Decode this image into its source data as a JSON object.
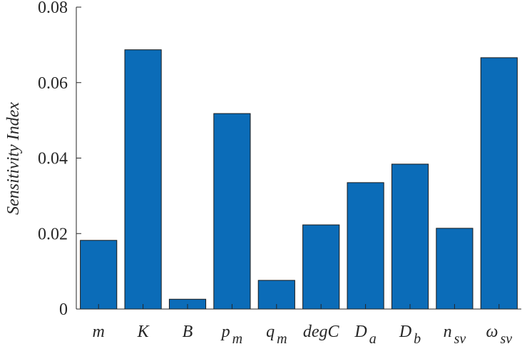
{
  "chart_data": {
    "type": "bar",
    "ylabel": "Sensitivity Index",
    "categories": [
      "m",
      "K",
      "B",
      "p_m",
      "q_m",
      "degC",
      "D_a",
      "D_b",
      "n_sv",
      "ω_sv"
    ],
    "values": [
      0.0182,
      0.0687,
      0.0026,
      0.0518,
      0.0076,
      0.0223,
      0.0335,
      0.0384,
      0.0214,
      0.0666
    ],
    "color": "#0b6cb8",
    "ylim": [
      0,
      0.08
    ],
    "yticks": [
      0,
      0.02,
      0.04,
      0.06,
      0.08
    ],
    "grid": false
  }
}
